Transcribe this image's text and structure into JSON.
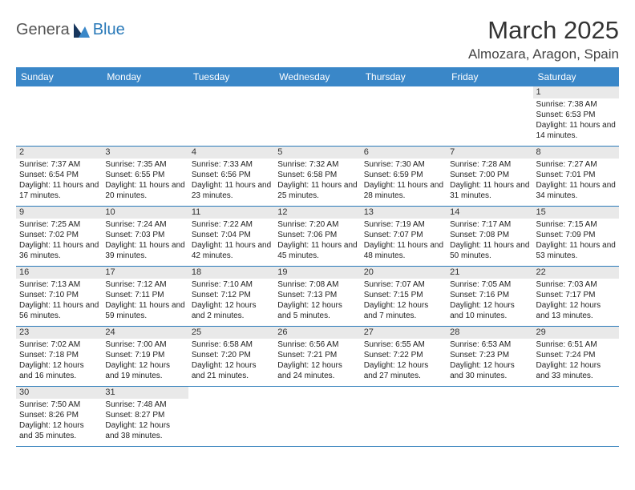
{
  "logo": {
    "part1": "Genera",
    "part2": "Blue"
  },
  "title": "March 2025",
  "location": "Almozara, Aragon, Spain",
  "days_of_week": [
    "Sunday",
    "Monday",
    "Tuesday",
    "Wednesday",
    "Thursday",
    "Friday",
    "Saturday"
  ],
  "header_bg": "#3a87c8",
  "border_color": "#2a7ab9",
  "daynum_bg": "#e9e9e9",
  "weeks": [
    [
      null,
      null,
      null,
      null,
      null,
      null,
      {
        "n": "1",
        "sr": "7:38 AM",
        "ss": "6:53 PM",
        "dl": "11 hours and 14 minutes."
      }
    ],
    [
      {
        "n": "2",
        "sr": "7:37 AM",
        "ss": "6:54 PM",
        "dl": "11 hours and 17 minutes."
      },
      {
        "n": "3",
        "sr": "7:35 AM",
        "ss": "6:55 PM",
        "dl": "11 hours and 20 minutes."
      },
      {
        "n": "4",
        "sr": "7:33 AM",
        "ss": "6:56 PM",
        "dl": "11 hours and 23 minutes."
      },
      {
        "n": "5",
        "sr": "7:32 AM",
        "ss": "6:58 PM",
        "dl": "11 hours and 25 minutes."
      },
      {
        "n": "6",
        "sr": "7:30 AM",
        "ss": "6:59 PM",
        "dl": "11 hours and 28 minutes."
      },
      {
        "n": "7",
        "sr": "7:28 AM",
        "ss": "7:00 PM",
        "dl": "11 hours and 31 minutes."
      },
      {
        "n": "8",
        "sr": "7:27 AM",
        "ss": "7:01 PM",
        "dl": "11 hours and 34 minutes."
      }
    ],
    [
      {
        "n": "9",
        "sr": "7:25 AM",
        "ss": "7:02 PM",
        "dl": "11 hours and 36 minutes."
      },
      {
        "n": "10",
        "sr": "7:24 AM",
        "ss": "7:03 PM",
        "dl": "11 hours and 39 minutes."
      },
      {
        "n": "11",
        "sr": "7:22 AM",
        "ss": "7:04 PM",
        "dl": "11 hours and 42 minutes."
      },
      {
        "n": "12",
        "sr": "7:20 AM",
        "ss": "7:06 PM",
        "dl": "11 hours and 45 minutes."
      },
      {
        "n": "13",
        "sr": "7:19 AM",
        "ss": "7:07 PM",
        "dl": "11 hours and 48 minutes."
      },
      {
        "n": "14",
        "sr": "7:17 AM",
        "ss": "7:08 PM",
        "dl": "11 hours and 50 minutes."
      },
      {
        "n": "15",
        "sr": "7:15 AM",
        "ss": "7:09 PM",
        "dl": "11 hours and 53 minutes."
      }
    ],
    [
      {
        "n": "16",
        "sr": "7:13 AM",
        "ss": "7:10 PM",
        "dl": "11 hours and 56 minutes."
      },
      {
        "n": "17",
        "sr": "7:12 AM",
        "ss": "7:11 PM",
        "dl": "11 hours and 59 minutes."
      },
      {
        "n": "18",
        "sr": "7:10 AM",
        "ss": "7:12 PM",
        "dl": "12 hours and 2 minutes."
      },
      {
        "n": "19",
        "sr": "7:08 AM",
        "ss": "7:13 PM",
        "dl": "12 hours and 5 minutes."
      },
      {
        "n": "20",
        "sr": "7:07 AM",
        "ss": "7:15 PM",
        "dl": "12 hours and 7 minutes."
      },
      {
        "n": "21",
        "sr": "7:05 AM",
        "ss": "7:16 PM",
        "dl": "12 hours and 10 minutes."
      },
      {
        "n": "22",
        "sr": "7:03 AM",
        "ss": "7:17 PM",
        "dl": "12 hours and 13 minutes."
      }
    ],
    [
      {
        "n": "23",
        "sr": "7:02 AM",
        "ss": "7:18 PM",
        "dl": "12 hours and 16 minutes."
      },
      {
        "n": "24",
        "sr": "7:00 AM",
        "ss": "7:19 PM",
        "dl": "12 hours and 19 minutes."
      },
      {
        "n": "25",
        "sr": "6:58 AM",
        "ss": "7:20 PM",
        "dl": "12 hours and 21 minutes."
      },
      {
        "n": "26",
        "sr": "6:56 AM",
        "ss": "7:21 PM",
        "dl": "12 hours and 24 minutes."
      },
      {
        "n": "27",
        "sr": "6:55 AM",
        "ss": "7:22 PM",
        "dl": "12 hours and 27 minutes."
      },
      {
        "n": "28",
        "sr": "6:53 AM",
        "ss": "7:23 PM",
        "dl": "12 hours and 30 minutes."
      },
      {
        "n": "29",
        "sr": "6:51 AM",
        "ss": "7:24 PM",
        "dl": "12 hours and 33 minutes."
      }
    ],
    [
      {
        "n": "30",
        "sr": "7:50 AM",
        "ss": "8:26 PM",
        "dl": "12 hours and 35 minutes."
      },
      {
        "n": "31",
        "sr": "7:48 AM",
        "ss": "8:27 PM",
        "dl": "12 hours and 38 minutes."
      },
      null,
      null,
      null,
      null,
      null
    ]
  ],
  "labels": {
    "sunrise": "Sunrise:",
    "sunset": "Sunset:",
    "daylight": "Daylight:"
  }
}
